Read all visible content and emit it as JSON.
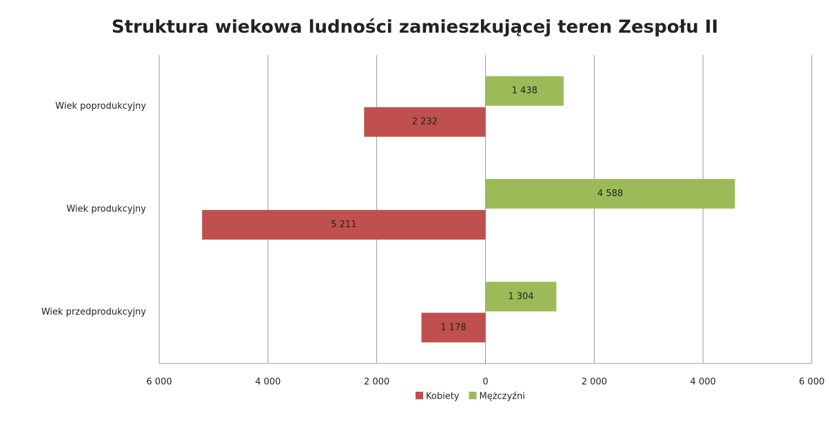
{
  "chart_data": {
    "type": "bar",
    "orientation": "horizontal",
    "title": "Struktura wiekowa ludności zamieszkującej teren Zespołu II",
    "categories": [
      "Wiek poprodukcyjny",
      "Wiek produkcyjny",
      "Wiek przedprodukcyjny"
    ],
    "series": [
      {
        "name": "Kobiety",
        "color": "#c0504d",
        "values": [
          -2232,
          -5211,
          -1178
        ],
        "value_labels": [
          "2 232",
          "5 211",
          "1 178"
        ]
      },
      {
        "name": "Mężczyźni",
        "color": "#9bbb59",
        "values": [
          1438,
          4588,
          1304
        ],
        "value_labels": [
          "1 438",
          "4 588",
          "1 304"
        ]
      }
    ],
    "xlim": [
      -6000,
      6000
    ],
    "xticks": [
      {
        "value": -6000,
        "label": "6 000"
      },
      {
        "value": -4000,
        "label": "4 000"
      },
      {
        "value": -2000,
        "label": "2 000"
      },
      0,
      {
        "value": 2000,
        "label": "2 000"
      },
      {
        "value": 4000,
        "label": "4 000"
      },
      {
        "value": 6000,
        "label": "6 000"
      }
    ],
    "grid": true,
    "legend": "bottom"
  }
}
